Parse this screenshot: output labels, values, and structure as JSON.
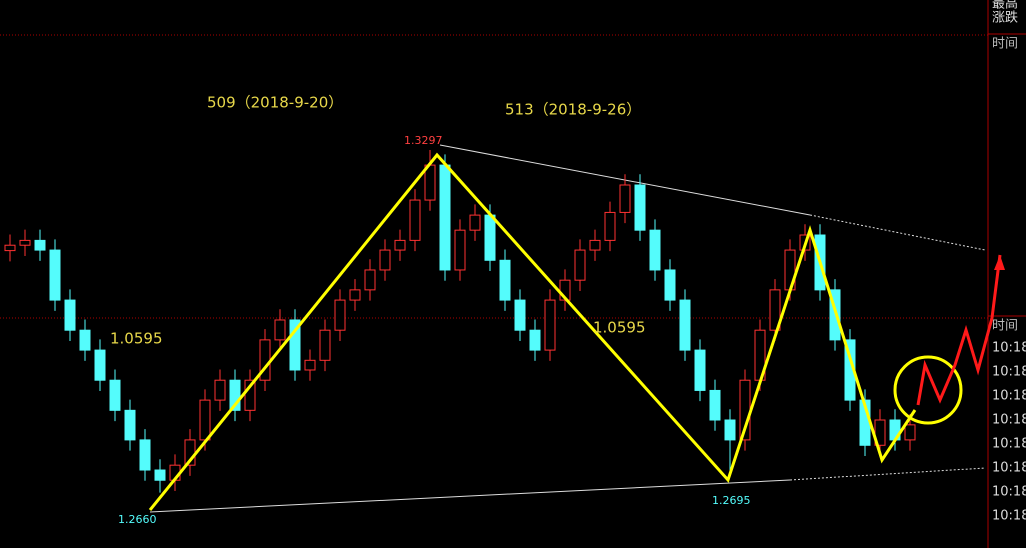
{
  "chart_data": {
    "type": "candlestick",
    "open": [
      1.311,
      1.312,
      1.3129,
      1.3111,
      1.3018,
      1.2962,
      1.2925,
      1.2869,
      1.2813,
      1.2758,
      1.2702,
      1.2683,
      1.2711,
      1.2758,
      1.2832,
      1.2869,
      1.2813,
      1.2869,
      1.2944,
      1.2981,
      1.2888,
      1.2906,
      1.2962,
      1.3018,
      1.3037,
      1.3074,
      1.3111,
      1.3129,
      1.3204,
      1.3269,
      1.3074,
      1.3148,
      1.3176,
      1.3092,
      1.3018,
      1.2962,
      1.2925,
      1.3018,
      1.3055,
      1.3111,
      1.3129,
      1.3181,
      1.3232,
      1.3148,
      1.3074,
      1.3018,
      1.2925,
      1.285,
      1.2795,
      1.2758,
      1.2869,
      1.2962,
      1.3037,
      1.3111,
      1.3139,
      1.3037,
      1.2944,
      1.2832,
      1.2748,
      1.2795,
      1.2758
    ],
    "high": [
      1.314,
      1.3149,
      1.3149,
      1.3131,
      1.3038,
      1.2982,
      1.2945,
      1.2889,
      1.2833,
      1.2778,
      1.2722,
      1.2731,
      1.2778,
      1.2852,
      1.2889,
      1.2889,
      1.2889,
      1.2964,
      1.3001,
      1.3001,
      1.2926,
      1.2982,
      1.3038,
      1.3057,
      1.3094,
      1.3131,
      1.3149,
      1.3224,
      1.3297,
      1.3289,
      1.3168,
      1.3196,
      1.3196,
      1.3112,
      1.3038,
      1.2982,
      1.3038,
      1.3075,
      1.3131,
      1.3149,
      1.3201,
      1.3252,
      1.3252,
      1.3168,
      1.3094,
      1.3038,
      1.2945,
      1.287,
      1.2815,
      1.2889,
      1.2982,
      1.3057,
      1.3131,
      1.3159,
      1.3159,
      1.3057,
      1.2964,
      1.2852,
      1.2815,
      1.2815,
      1.2806
    ],
    "low": [
      1.309,
      1.31,
      1.3091,
      1.2998,
      1.2942,
      1.2905,
      1.2849,
      1.2793,
      1.2738,
      1.2682,
      1.266,
      1.2663,
      1.2691,
      1.2738,
      1.2812,
      1.2793,
      1.2793,
      1.2849,
      1.2924,
      1.2868,
      1.2868,
      1.2886,
      1.2942,
      1.2998,
      1.3017,
      1.3054,
      1.3091,
      1.3109,
      1.3184,
      1.3054,
      1.3054,
      1.3128,
      1.3072,
      1.2998,
      1.2942,
      1.2905,
      1.2905,
      1.2998,
      1.3035,
      1.3091,
      1.3109,
      1.3161,
      1.3128,
      1.3054,
      1.2998,
      1.2905,
      1.283,
      1.2775,
      1.2695,
      1.2738,
      1.2849,
      1.2942,
      1.3017,
      1.3091,
      1.3017,
      1.2924,
      1.2812,
      1.2728,
      1.2728,
      1.2738,
      1.2738
    ],
    "close": [
      1.312,
      1.3129,
      1.3111,
      1.3018,
      1.2962,
      1.2925,
      1.2869,
      1.2813,
      1.2758,
      1.2702,
      1.2683,
      1.2711,
      1.2758,
      1.2832,
      1.2869,
      1.2813,
      1.2869,
      1.2944,
      1.2981,
      1.2888,
      1.2906,
      1.2962,
      1.3018,
      1.3037,
      1.3074,
      1.3111,
      1.3129,
      1.3204,
      1.3269,
      1.3074,
      1.3148,
      1.3176,
      1.3092,
      1.3018,
      1.2962,
      1.2925,
      1.3018,
      1.3055,
      1.3111,
      1.3129,
      1.3181,
      1.3232,
      1.3148,
      1.3074,
      1.3018,
      1.2925,
      1.285,
      1.2795,
      1.2758,
      1.2869,
      1.2962,
      1.3037,
      1.3111,
      1.3139,
      1.3037,
      1.2944,
      1.2832,
      1.2748,
      1.2795,
      1.2758,
      1.2786
    ],
    "up_color": "#ff3232",
    "down_color": "#54fcfc",
    "ylim": [
      1.2557,
      1.3576
    ],
    "annotations": [
      "509（2018-9-20）",
      "513（2018-9-26）",
      "1.0595",
      "1.0595"
    ],
    "price_labels": [
      "1.3297",
      "1.2660",
      "1.2695"
    ]
  },
  "side_panel": {
    "top": [
      "最高",
      "涨跌"
    ],
    "time_headers": [
      "时间",
      "时间"
    ],
    "times": [
      "10:18",
      "10:18",
      "10:18",
      "10:18",
      "10:18",
      "10:18",
      "10:18",
      "10:18"
    ]
  }
}
